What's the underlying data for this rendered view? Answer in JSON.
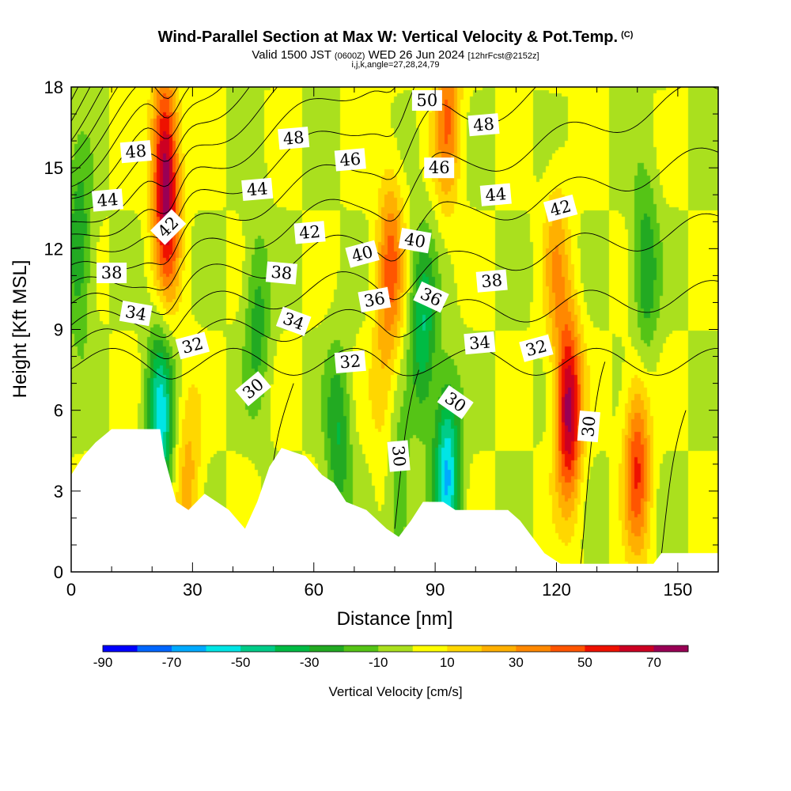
{
  "header": {
    "title": "Wind-Parallel Section at Max W: Vertical Velocity & Pot.Temp.",
    "copyright": "(C)",
    "valid_prefix": "Valid 1500 JST",
    "valid_utc": "(0600Z)",
    "valid_date": "WED 26 Jun 2024",
    "forecast": "[12hrFcst@2152z]",
    "indices": "i,j,k,angle=27,28,24,79"
  },
  "chart_data": {
    "type": "heatmap",
    "xlabel": "Distance [nm]",
    "ylabel": "Height [Kft MSL]",
    "xlim": [
      0,
      160
    ],
    "ylim": [
      0,
      18
    ],
    "x_ticks": [
      0,
      30,
      60,
      90,
      120,
      150
    ],
    "y_ticks": [
      0,
      3,
      6,
      9,
      12,
      15,
      18
    ],
    "colorbar": {
      "title": "Vertical Velocity [cm/s]",
      "tick_labels": [
        -90,
        -70,
        -50,
        -30,
        -10,
        10,
        30,
        50,
        70
      ],
      "bounds": [
        -90,
        -80,
        -70,
        -60,
        -50,
        -40,
        -30,
        -20,
        -10,
        0,
        10,
        20,
        30,
        40,
        50,
        60,
        70,
        80
      ],
      "colors": [
        "#0000ff",
        "#0066ff",
        "#00aaff",
        "#00e5e5",
        "#00cc88",
        "#00bb44",
        "#22aa22",
        "#55c416",
        "#aae01e",
        "#ffff00",
        "#ffd700",
        "#ffb000",
        "#ff8800",
        "#ff5500",
        "#ee1100",
        "#cc0022",
        "#990055",
        "#660088"
      ]
    },
    "terrain_kft": [
      [
        0,
        3.6
      ],
      [
        3,
        4.3
      ],
      [
        6,
        4.8
      ],
      [
        10,
        5.3
      ],
      [
        22,
        5.3
      ],
      [
        23,
        4.3
      ],
      [
        26,
        2.6
      ],
      [
        29,
        2.3
      ],
      [
        33,
        2.9
      ],
      [
        39,
        2.3
      ],
      [
        43,
        1.6
      ],
      [
        46,
        2.6
      ],
      [
        49,
        3.9
      ],
      [
        52,
        4.6
      ],
      [
        58,
        4.3
      ],
      [
        62,
        3.6
      ],
      [
        65,
        3.3
      ],
      [
        68,
        2.6
      ],
      [
        73,
        2.3
      ],
      [
        78,
        1.6
      ],
      [
        81,
        1.3
      ],
      [
        84,
        1.9
      ],
      [
        87,
        2.6
      ],
      [
        92,
        2.6
      ],
      [
        95,
        2.3
      ],
      [
        108,
        2.3
      ],
      [
        111,
        1.9
      ],
      [
        114,
        1.3
      ],
      [
        117,
        0.7
      ],
      [
        121,
        0.3
      ],
      [
        144,
        0.3
      ],
      [
        146,
        0.7
      ],
      [
        160,
        0.7
      ]
    ],
    "updraft_cores": [
      {
        "x": 23,
        "y": 15.5,
        "w": 55
      },
      {
        "x": 24,
        "y": 13.0,
        "w": 40
      },
      {
        "x": 79,
        "y": 11.5,
        "w": 40
      },
      {
        "x": 93,
        "y": 17.0,
        "w": 40
      },
      {
        "x": 123,
        "y": 6.0,
        "w": 75
      },
      {
        "x": 140,
        "y": 4.0,
        "w": 50
      },
      {
        "x": 29,
        "y": 3.3,
        "w": 25
      },
      {
        "x": 77,
        "y": 7.0,
        "w": 15
      },
      {
        "x": 120,
        "y": 11.5,
        "w": 25
      }
    ],
    "downdraft_cores": [
      {
        "x": 22,
        "y": 5.6,
        "w": -55
      },
      {
        "x": 93,
        "y": 3.7,
        "w": -60
      },
      {
        "x": 87,
        "y": 9.0,
        "w": -40
      },
      {
        "x": 142,
        "y": 11.2,
        "w": -30
      },
      {
        "x": 2,
        "y": 12.0,
        "w": -30
      },
      {
        "x": 46,
        "y": 9.5,
        "w": -25
      },
      {
        "x": 66,
        "y": 5.0,
        "w": -30
      },
      {
        "x": 81,
        "y": 2.6,
        "w": -20
      }
    ],
    "theta_contours": [
      {
        "value": 30,
        "label": "30"
      },
      {
        "value": 32,
        "label": "32"
      },
      {
        "value": 34,
        "label": "34"
      },
      {
        "value": 36,
        "label": "36"
      },
      {
        "value": 38,
        "label": "38"
      },
      {
        "value": 40,
        "label": "40"
      },
      {
        "value": 42,
        "label": "42"
      },
      {
        "value": 44,
        "label": "44"
      },
      {
        "value": 46,
        "label": "46"
      },
      {
        "value": 48,
        "label": "48"
      },
      {
        "value": 50,
        "label": "50"
      }
    ],
    "contour_labels": [
      {
        "text": "48",
        "x": 16,
        "y": 15.6,
        "rot": -5
      },
      {
        "text": "48",
        "x": 55,
        "y": 16.1,
        "rot": -5
      },
      {
        "text": "50",
        "x": 88,
        "y": 17.5,
        "rot": 0
      },
      {
        "text": "48",
        "x": 102,
        "y": 16.6,
        "rot": -5
      },
      {
        "text": "46",
        "x": 69,
        "y": 15.3,
        "rot": -5
      },
      {
        "text": "46",
        "x": 91,
        "y": 15.0,
        "rot": 0
      },
      {
        "text": "44",
        "x": 9,
        "y": 13.8,
        "rot": -5
      },
      {
        "text": "44",
        "x": 46,
        "y": 14.2,
        "rot": -5
      },
      {
        "text": "44",
        "x": 105,
        "y": 14.0,
        "rot": -5
      },
      {
        "text": "42",
        "x": 24,
        "y": 12.8,
        "rot": -45
      },
      {
        "text": "42",
        "x": 59,
        "y": 12.6,
        "rot": -5
      },
      {
        "text": "42",
        "x": 121,
        "y": 13.5,
        "rot": -15
      },
      {
        "text": "40",
        "x": 72,
        "y": 11.8,
        "rot": -15
      },
      {
        "text": "40",
        "x": 85,
        "y": 12.3,
        "rot": 10
      },
      {
        "text": "38",
        "x": 10,
        "y": 11.1,
        "rot": 0
      },
      {
        "text": "38",
        "x": 52,
        "y": 11.1,
        "rot": 5
      },
      {
        "text": "38",
        "x": 104,
        "y": 10.8,
        "rot": -5
      },
      {
        "text": "36",
        "x": 75,
        "y": 10.1,
        "rot": -10
      },
      {
        "text": "36",
        "x": 89,
        "y": 10.2,
        "rot": 25
      },
      {
        "text": "34",
        "x": 16,
        "y": 9.6,
        "rot": 10
      },
      {
        "text": "34",
        "x": 55,
        "y": 9.3,
        "rot": 20
      },
      {
        "text": "34",
        "x": 101,
        "y": 8.5,
        "rot": -5
      },
      {
        "text": "32",
        "x": 30,
        "y": 8.4,
        "rot": -15
      },
      {
        "text": "32",
        "x": 69,
        "y": 7.8,
        "rot": -5
      },
      {
        "text": "32",
        "x": 115,
        "y": 8.3,
        "rot": -15
      },
      {
        "text": "30",
        "x": 45,
        "y": 6.8,
        "rot": -40
      },
      {
        "text": "30",
        "x": 95,
        "y": 6.3,
        "rot": 35
      },
      {
        "text": "30",
        "x": 81,
        "y": 4.3,
        "rot": 85
      },
      {
        "text": "30",
        "x": 128,
        "y": 5.4,
        "rot": -85
      }
    ],
    "grid": false
  }
}
